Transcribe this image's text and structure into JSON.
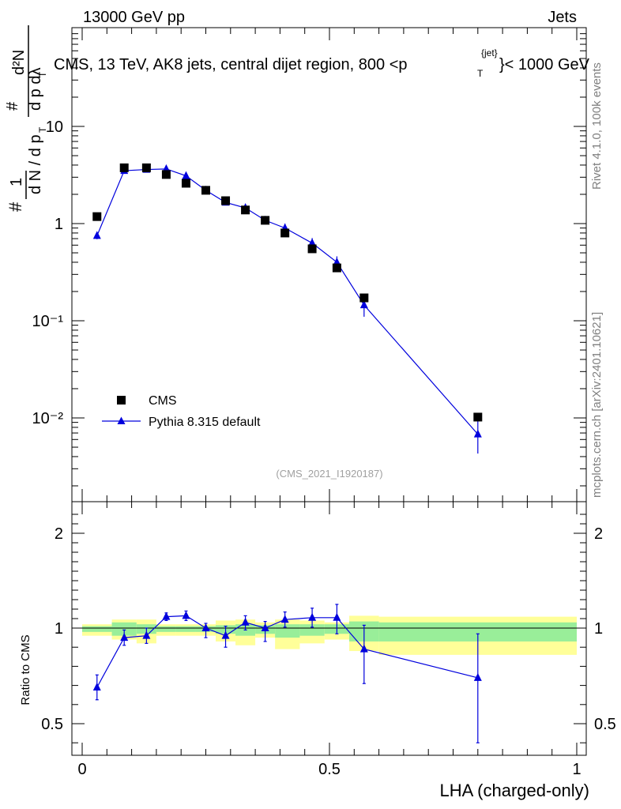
{
  "header": {
    "energy_label": "13000 GeV pp",
    "category_label": "Jets",
    "title_main": "CMS, 13 TeV, AK8 jets, central dijet region, 800 <p",
    "title_sup": "{jet}",
    "title_sub": "T",
    "title_tail": "}< 1000 GeV"
  },
  "side_labels": {
    "rivet": "Rivet 4.1.0,  100k events",
    "mcplots": "mcplots.cern.ch [arXiv:2401.10621]"
  },
  "watermark": "(CMS_2021_I1920187)",
  "main_ylabel": {
    "hash": "#",
    "one": "1",
    "dn": "d N / d p",
    "d2n": "d²N",
    "dpt_dl": "d p   dλ",
    "t": "T"
  },
  "ratio_ylabel": "Ratio to CMS",
  "xlabel": "LHA (charged-only)",
  "legend": {
    "data_label": "CMS",
    "mc_label": "Pythia 8.315 default"
  },
  "colors": {
    "mc": "#0000dd",
    "data": "#000000",
    "band_outer": "#ffff99",
    "band_inner": "#99ee99"
  },
  "chart_data": [
    {
      "type": "scatter",
      "name": "main",
      "yscale": "log",
      "xlim": [
        0,
        1
      ],
      "ylim": [
        0.001,
        100
      ],
      "y_tick_labels": [
        "10",
        "1",
        "10⁻¹",
        "10⁻²"
      ],
      "series": [
        {
          "name": "CMS",
          "x": [
            0.03,
            0.085,
            0.13,
            0.17,
            0.21,
            0.25,
            0.29,
            0.33,
            0.37,
            0.41,
            0.465,
            0.515,
            0.57,
            0.8
          ],
          "values": [
            1.18,
            3.75,
            3.75,
            3.2,
            2.6,
            2.2,
            1.72,
            1.38,
            1.08,
            0.8,
            0.55,
            0.35,
            0.172,
            0.0102
          ]
        },
        {
          "name": "Pythia 8.315 default",
          "x": [
            0.03,
            0.085,
            0.13,
            0.17,
            0.21,
            0.25,
            0.29,
            0.33,
            0.37,
            0.41,
            0.465,
            0.515,
            0.57,
            0.8
          ],
          "values": [
            0.75,
            3.5,
            3.6,
            3.65,
            3.1,
            2.2,
            1.65,
            1.45,
            1.08,
            0.9,
            0.63,
            0.4,
            0.145,
            0.0068
          ],
          "err_low": [
            0.06,
            0.15,
            0.15,
            0.15,
            0.15,
            0.1,
            0.1,
            0.15,
            0.1,
            0.1,
            0.08,
            0.06,
            0.035,
            0.0025
          ],
          "err_high": [
            0.06,
            0.15,
            0.15,
            0.15,
            0.15,
            0.1,
            0.1,
            0.15,
            0.1,
            0.1,
            0.08,
            0.06,
            0.035,
            0.0025
          ]
        }
      ]
    },
    {
      "type": "line",
      "name": "ratio",
      "xlim": [
        0,
        1
      ],
      "ylim": [
        0.35,
        2.25
      ],
      "x_tick_labels": [
        "0",
        "0.5",
        "1"
      ],
      "y_tick_labels": [
        "0.5",
        "1",
        "2"
      ],
      "bands": {
        "edges": [
          0,
          0.06,
          0.11,
          0.15,
          0.19,
          0.23,
          0.27,
          0.31,
          0.35,
          0.39,
          0.44,
          0.49,
          0.54,
          0.6,
          1.0
        ],
        "outer_lo": [
          0.96,
          0.94,
          0.92,
          0.96,
          0.96,
          0.96,
          0.93,
          0.91,
          0.95,
          0.89,
          0.92,
          0.94,
          0.88,
          0.86
        ],
        "outer_hi": [
          1.04,
          1.09,
          1.09,
          1.04,
          1.04,
          1.04,
          1.08,
          1.09,
          1.06,
          1.09,
          1.08,
          1.06,
          1.13,
          1.12
        ],
        "inner_lo": [
          0.98,
          0.96,
          0.97,
          0.98,
          0.98,
          0.98,
          0.97,
          0.96,
          0.97,
          0.95,
          0.96,
          0.97,
          0.93,
          0.93
        ],
        "inner_hi": [
          1.02,
          1.06,
          1.04,
          1.02,
          1.02,
          1.02,
          1.03,
          1.04,
          1.03,
          1.04,
          1.04,
          1.04,
          1.07,
          1.06
        ]
      },
      "series": [
        {
          "name": "Pythia 8.315 default / CMS",
          "x": [
            0.03,
            0.085,
            0.13,
            0.17,
            0.21,
            0.25,
            0.29,
            0.33,
            0.37,
            0.41,
            0.465,
            0.515,
            0.57,
            0.8
          ],
          "values": [
            0.69,
            0.95,
            0.96,
            1.12,
            1.13,
            1.0,
            0.96,
            1.06,
            1.0,
            1.09,
            1.11,
            1.11,
            0.89,
            0.74
          ],
          "err_low": [
            0.065,
            0.04,
            0.04,
            0.04,
            0.05,
            0.05,
            0.06,
            0.07,
            0.07,
            0.08,
            0.1,
            0.14,
            0.18,
            0.34
          ],
          "err_high": [
            0.065,
            0.04,
            0.04,
            0.04,
            0.05,
            0.05,
            0.06,
            0.07,
            0.07,
            0.08,
            0.1,
            0.14,
            0.14,
            0.23
          ]
        }
      ]
    }
  ]
}
